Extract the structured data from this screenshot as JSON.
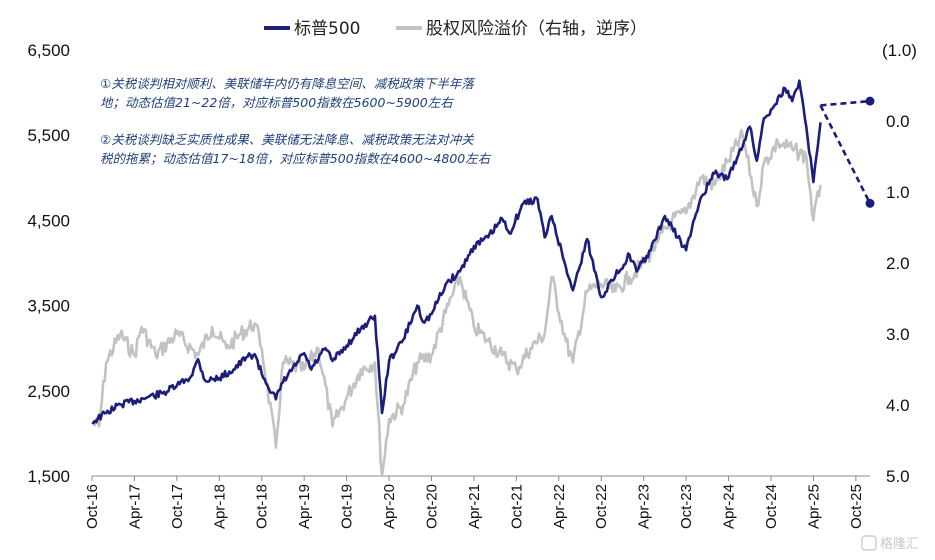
{
  "chart_data": {
    "type": "line",
    "legend": [
      "标普500",
      "股权风险溢价（右轴，逆序）"
    ],
    "series_colors": {
      "sp500": "#1b1f7a",
      "erp": "#c2c2c2"
    },
    "legend_position": "top",
    "left_axis": {
      "ylim": [
        1500,
        6500
      ],
      "ticks": [
        "1,500",
        "2,500",
        "3,500",
        "4,500",
        "5,500",
        "6,500"
      ]
    },
    "right_axis": {
      "ylim": [
        5.0,
        -1.0
      ],
      "inverted": true,
      "ticks": [
        "5.0",
        "4.0",
        "3.0",
        "2.0",
        "1.0",
        "0.0",
        "(1.0)"
      ],
      "highlight_tick_color": "#c00000"
    },
    "x_ticks": [
      "Oct-16",
      "Apr-17",
      "Oct-17",
      "Apr-18",
      "Oct-18",
      "Apr-19",
      "Oct-19",
      "Apr-20",
      "Oct-20",
      "Apr-21",
      "Oct-21",
      "Apr-22",
      "Oct-22",
      "Apr-23",
      "Oct-23",
      "Apr-24",
      "Oct-24",
      "Apr-25",
      "Oct-25"
    ],
    "annotations": [
      "①关税谈判相对顺利、美联储年内仍有降息空间、减税政策下半年落",
      "地；动态估值21~22倍，对应标普500指数在5600~5900左右",
      "②关税谈判缺乏实质性成果、美联储无法降息、减税政策无法对冲关",
      "税的拖累；动态估值17~18倍，对应标普500指数在4600~4800左右"
    ],
    "series": [
      {
        "name": "标普500",
        "axis": "left",
        "points": [
          [
            "Oct-16",
            2130
          ],
          [
            "Dec-16",
            2240
          ],
          [
            "Feb-17",
            2340
          ],
          [
            "Apr-17",
            2380
          ],
          [
            "Jun-17",
            2430
          ],
          [
            "Aug-17",
            2470
          ],
          [
            "Oct-17",
            2560
          ],
          [
            "Dec-17",
            2670
          ],
          [
            "Jan-18",
            2870
          ],
          [
            "Feb-18",
            2620
          ],
          [
            "Apr-18",
            2650
          ],
          [
            "Jun-18",
            2750
          ],
          [
            "Aug-18",
            2900
          ],
          [
            "Sep-18",
            2930
          ],
          [
            "Oct-18",
            2700
          ],
          [
            "Dec-18",
            2400
          ],
          [
            "Jan-19",
            2600
          ],
          [
            "Mar-19",
            2830
          ],
          [
            "Apr-19",
            2940
          ],
          [
            "May-19",
            2750
          ],
          [
            "Jul-19",
            3000
          ],
          [
            "Aug-19",
            2850
          ],
          [
            "Oct-19",
            3030
          ],
          [
            "Dec-19",
            3230
          ],
          [
            "Feb-20",
            3380
          ],
          [
            "Mar-20",
            2240
          ],
          [
            "Apr-20",
            2850
          ],
          [
            "Jun-20",
            3100
          ],
          [
            "Aug-20",
            3500
          ],
          [
            "Sep-20",
            3300
          ],
          [
            "Oct-20",
            3400
          ],
          [
            "Dec-20",
            3750
          ],
          [
            "Feb-21",
            3900
          ],
          [
            "Apr-21",
            4200
          ],
          [
            "Jun-21",
            4300
          ],
          [
            "Aug-21",
            4520
          ],
          [
            "Sep-21",
            4350
          ],
          [
            "Nov-21",
            4700
          ],
          [
            "Jan-22",
            4750
          ],
          [
            "Feb-22",
            4300
          ],
          [
            "Mar-22",
            4550
          ],
          [
            "May-22",
            3950
          ],
          [
            "Jun-22",
            3680
          ],
          [
            "Aug-22",
            4280
          ],
          [
            "Oct-22",
            3600
          ],
          [
            "Dec-22",
            3850
          ],
          [
            "Feb-23",
            4100
          ],
          [
            "Mar-23",
            3900
          ],
          [
            "May-23",
            4150
          ],
          [
            "Jul-23",
            4550
          ],
          [
            "Oct-23",
            4150
          ],
          [
            "Dec-23",
            4750
          ],
          [
            "Feb-24",
            5050
          ],
          [
            "Apr-24",
            5000
          ],
          [
            "Jul-24",
            5600
          ],
          [
            "Aug-24",
            5200
          ],
          [
            "Sep-24",
            5700
          ],
          [
            "Oct-24",
            5800
          ],
          [
            "Dec-24",
            6050
          ],
          [
            "Jan-25",
            5900
          ],
          [
            "Feb-25",
            6140
          ],
          [
            "Mar-25",
            5600
          ],
          [
            "Apr-25",
            4950
          ],
          [
            "May-25",
            5650
          ]
        ]
      },
      {
        "name": "股权风险溢价（右轴，逆序）",
        "axis": "right",
        "points": [
          [
            "Oct-16",
            4.25
          ],
          [
            "Nov-16",
            4.3
          ],
          [
            "Dec-16",
            3.4
          ],
          [
            "Feb-17",
            3.0
          ],
          [
            "Apr-17",
            3.3
          ],
          [
            "May-17",
            2.9
          ],
          [
            "Jul-17",
            3.3
          ],
          [
            "Oct-17",
            3.0
          ],
          [
            "Jan-18",
            3.3
          ],
          [
            "Mar-18",
            2.9
          ],
          [
            "May-18",
            3.2
          ],
          [
            "Jul-18",
            3.0
          ],
          [
            "Sep-18",
            2.85
          ],
          [
            "Oct-18",
            3.2
          ],
          [
            "Dec-18",
            4.6
          ],
          [
            "Jan-19",
            3.4
          ],
          [
            "Apr-19",
            3.5
          ],
          [
            "Jun-19",
            3.2
          ],
          [
            "Aug-19",
            4.3
          ],
          [
            "Oct-19",
            3.9
          ],
          [
            "Dec-19",
            3.5
          ],
          [
            "Feb-20",
            3.4
          ],
          [
            "Mar-20",
            5.0
          ],
          [
            "Apr-20",
            4.2
          ],
          [
            "Jun-20",
            4.0
          ],
          [
            "Aug-20",
            3.4
          ],
          [
            "Oct-20",
            3.3
          ],
          [
            "Dec-20",
            2.7
          ],
          [
            "Feb-21",
            2.2
          ],
          [
            "Apr-21",
            2.9
          ],
          [
            "Jun-21",
            3.1
          ],
          [
            "Aug-21",
            3.3
          ],
          [
            "Oct-21",
            3.5
          ],
          [
            "Dec-21",
            3.2
          ],
          [
            "Feb-22",
            3.0
          ],
          [
            "Mar-22",
            2.2
          ],
          [
            "May-22",
            3.1
          ],
          [
            "Jun-22",
            3.4
          ],
          [
            "Aug-22",
            2.4
          ],
          [
            "Oct-22",
            2.3
          ],
          [
            "Dec-22",
            2.4
          ],
          [
            "Feb-23",
            2.2
          ],
          [
            "Apr-23",
            2.0
          ],
          [
            "Jun-23",
            1.7
          ],
          [
            "Aug-23",
            1.4
          ],
          [
            "Oct-23",
            1.3
          ],
          [
            "Dec-23",
            0.8
          ],
          [
            "Feb-24",
            0.9
          ],
          [
            "Apr-24",
            0.55
          ],
          [
            "Jun-24",
            0.2
          ],
          [
            "Aug-24",
            1.2
          ],
          [
            "Sep-24",
            0.6
          ],
          [
            "Nov-24",
            0.3
          ],
          [
            "Jan-25",
            0.4
          ],
          [
            "Mar-25",
            0.5
          ],
          [
            "Apr-25",
            1.4
          ],
          [
            "May-25",
            0.9
          ]
        ]
      },
      {
        "name": "",
        "axis": "left",
        "style": "dashed",
        "points": [
          [
            "May-25",
            5850
          ],
          [
            "Dec-25",
            5900
          ]
        ]
      },
      {
        "name": "",
        "axis": "left",
        "style": "dashed",
        "points": [
          [
            "May-25",
            5850
          ],
          [
            "Dec-25",
            4700
          ]
        ]
      }
    ]
  },
  "watermark": "格隆汇"
}
